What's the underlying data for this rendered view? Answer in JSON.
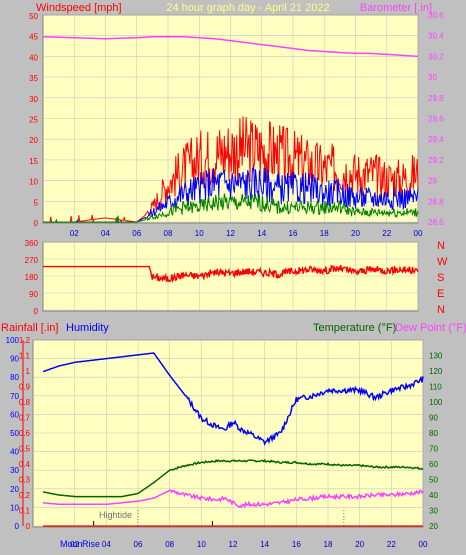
{
  "header": {
    "left_label": "Windspeed [mph]",
    "title": "24 hour graph day - April 21 2022",
    "right_label": "Barometer [.in]"
  },
  "x_ticks": [
    "02",
    "04",
    "06",
    "08",
    "10",
    "12",
    "14",
    "16",
    "18",
    "20",
    "22",
    "00"
  ],
  "x_ticks_bottom": [
    "02",
    "04",
    "06",
    "08",
    "10",
    "12",
    "14",
    "16",
    "18",
    "20",
    "22",
    "00"
  ],
  "colors": {
    "panel_bg": "#ffffc0",
    "window_bg": "#c0c0c0",
    "grid": "#c8c8c8",
    "gust": "#ff0000",
    "wind": "#0000ff",
    "wind_low": "#008000",
    "barometer": "#ff40ff",
    "direction": "#ff0000",
    "humidity": "#0000ff",
    "rain": "#ff0000",
    "temperature": "#006400",
    "dewpoint": "#ff40ff",
    "hightide": "#707070",
    "moon": "#0000ff"
  },
  "chart_data": [
    {
      "type": "line",
      "name": "wind",
      "xlabel": "",
      "ylabel": "Windspeed [mph]",
      "y2label": "Barometer [.in]",
      "ylim": [
        0,
        50
      ],
      "y_ticks": [
        0,
        5,
        10,
        15,
        20,
        25,
        30,
        35,
        40,
        45,
        50
      ],
      "y2lim": [
        28.6,
        30.7
      ],
      "y2_ticks": [
        "28.6",
        "28.8",
        "29",
        "29.2",
        "29.4",
        "29.6",
        "29.8",
        "30",
        "30.2",
        "30.4",
        "30.6"
      ],
      "x": [
        0,
        2,
        4,
        6,
        7,
        8,
        9,
        10,
        11,
        12,
        13,
        14,
        15,
        16,
        17,
        18,
        19,
        20,
        21,
        22,
        23,
        24
      ],
      "series": [
        {
          "name": "Gust",
          "values": [
            0,
            0,
            1,
            0,
            3,
            8,
            11,
            13,
            14,
            15,
            15,
            15,
            14,
            13,
            12,
            11,
            11,
            10,
            10,
            9,
            9,
            10
          ]
        },
        {
          "name": "Average",
          "values": [
            0,
            0,
            0,
            0,
            2,
            4,
            6,
            7,
            8,
            8,
            8,
            8,
            7,
            7,
            7,
            6,
            6,
            5,
            5,
            5,
            5,
            5
          ]
        },
        {
          "name": "Low",
          "values": [
            0,
            0,
            0,
            0,
            1,
            2,
            3,
            3,
            4,
            4,
            4,
            4,
            3,
            3,
            3,
            3,
            3,
            2,
            2,
            2,
            2,
            2
          ]
        },
        {
          "name": "Barometer",
          "values": [
            30.48,
            30.47,
            30.46,
            30.47,
            30.48,
            30.48,
            30.48,
            30.47,
            30.46,
            30.44,
            30.42,
            30.4,
            30.38,
            30.36,
            30.34,
            30.33,
            30.32,
            30.31,
            30.31,
            30.3,
            30.29,
            30.28
          ]
        }
      ]
    },
    {
      "type": "line",
      "name": "wind_direction",
      "ylim": [
        0,
        360
      ],
      "y_ticks": [
        0,
        90,
        180,
        270,
        360
      ],
      "compass": [
        "N",
        "W",
        "S",
        "E",
        "N"
      ],
      "x": [
        0,
        2,
        4,
        6,
        6.8,
        7,
        8,
        9,
        10,
        11,
        12,
        13,
        14,
        15,
        16,
        17,
        18,
        19,
        20,
        21,
        22,
        23,
        24
      ],
      "series": [
        {
          "name": "Direction",
          "values": [
            230,
            230,
            230,
            230,
            230,
            175,
            165,
            185,
            180,
            200,
            195,
            205,
            200,
            190,
            205,
            215,
            210,
            220,
            200,
            215,
            210,
            215,
            205
          ]
        }
      ]
    },
    {
      "type": "line",
      "name": "humidity_temperature",
      "left_label": "Rainfall [.in]",
      "left2_label": "Humidity",
      "right_label": "Temperature (°F)",
      "right2_label": "Dew Point (°F)",
      "ylim_humidity": [
        0,
        100
      ],
      "humidity_ticks": [
        0,
        10,
        20,
        30,
        40,
        50,
        60,
        70,
        80,
        90,
        100
      ],
      "ylim_rain": [
        0,
        1.2
      ],
      "rain_ticks": [
        "0",
        "0.1",
        "0.2",
        "0.3",
        "0.4",
        "0.5",
        "0.6",
        "0.7",
        "0.8",
        "0.9",
        "1",
        "1.1",
        "1.2"
      ],
      "ylim_temp": [
        20,
        140
      ],
      "temp_ticks": [
        20,
        30,
        40,
        50,
        60,
        70,
        80,
        90,
        100,
        110,
        120,
        130
      ],
      "x": [
        0,
        1,
        2,
        3,
        4,
        5,
        6,
        7,
        8,
        9,
        10,
        11,
        11.5,
        12,
        12.5,
        13,
        14,
        15,
        16,
        17,
        18,
        19,
        20,
        21,
        22,
        23,
        24
      ],
      "series": [
        {
          "name": "Humidity",
          "values": [
            83,
            86,
            88,
            89,
            90,
            91,
            92,
            93,
            81,
            70,
            58,
            53,
            52,
            56,
            52,
            50,
            45,
            50,
            68,
            70,
            73,
            73,
            73,
            69,
            73,
            75,
            79
          ]
        },
        {
          "name": "Temperature",
          "values": [
            42,
            40,
            39,
            39,
            39,
            39,
            41,
            48,
            56,
            59,
            61,
            62,
            62,
            62,
            62,
            62,
            62,
            61,
            61,
            60,
            60,
            59,
            59,
            58,
            58,
            58,
            57
          ]
        },
        {
          "name": "Dew Point",
          "values": [
            35,
            34,
            34,
            34,
            34,
            35,
            36,
            38,
            43,
            40,
            38,
            37,
            38,
            35,
            33,
            34,
            34,
            35,
            37,
            38,
            39,
            39,
            39,
            40,
            40,
            41,
            42
          ]
        },
        {
          "name": "Rainfall",
          "values": [
            0,
            0,
            0,
            0,
            0,
            0,
            0,
            0,
            0,
            0,
            0,
            0,
            0,
            0,
            0,
            0,
            0,
            0,
            0,
            0,
            0,
            0,
            0,
            0,
            0,
            0,
            0
          ]
        }
      ],
      "annotations": {
        "hightide_label": "Hightide",
        "hightide_times": [
          6.0,
          19.0
        ],
        "moonrise_label": "Moonrise",
        "moon_label_left": "Moon",
        "moon_label_right": "Rise",
        "moon_times": [
          3.2,
          10.7
        ]
      }
    }
  ]
}
